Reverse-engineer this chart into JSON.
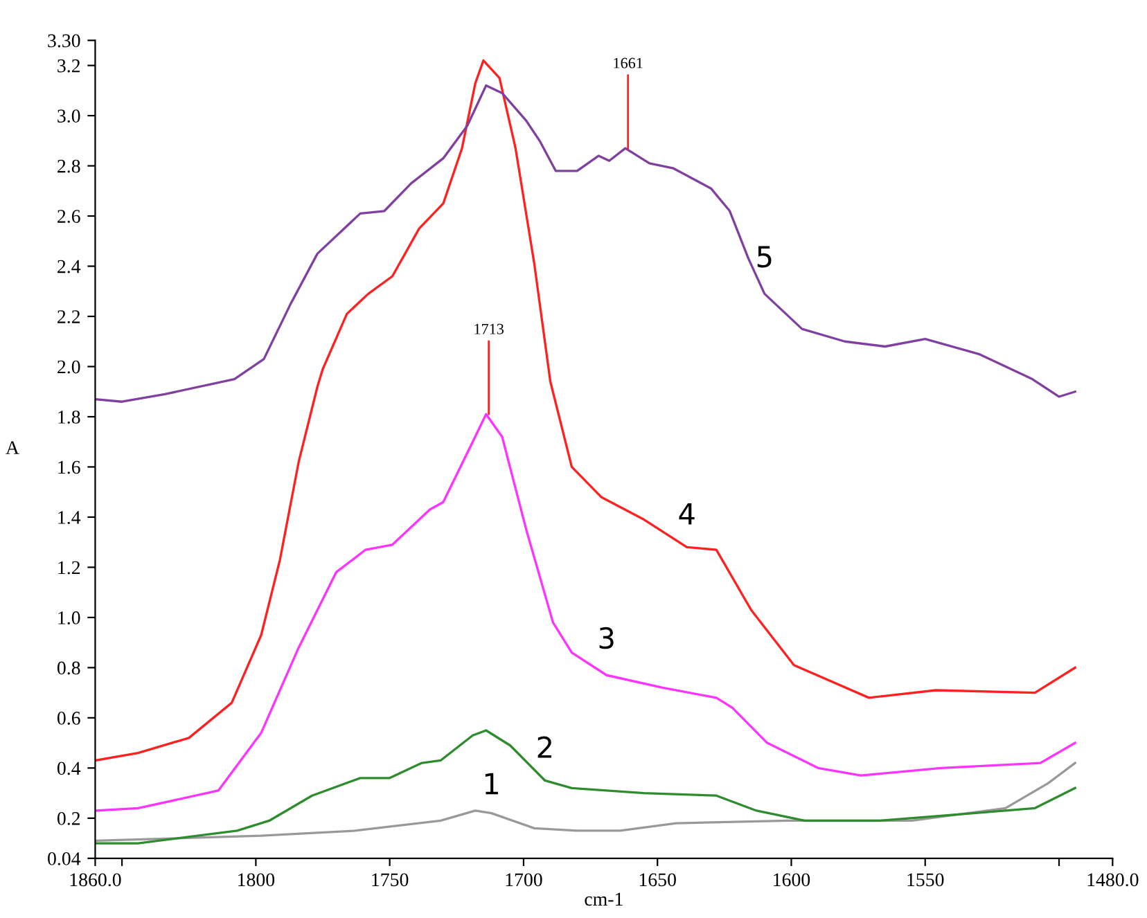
{
  "chart_data": {
    "type": "line",
    "xlabel": "cm-1",
    "ylabel": "A",
    "xlim": [
      1860,
      1480
    ],
    "ylim": [
      0.04,
      3.3
    ],
    "xticks": [
      {
        "value": 1860,
        "label": "1860.0"
      },
      {
        "value": 1850,
        "label": null
      },
      1800,
      1750,
      1700,
      1650,
      1600,
      1550,
      {
        "value": 1500,
        "label": null
      },
      {
        "value": 1480,
        "label": "1480.0"
      }
    ],
    "yticks": [
      0.04,
      0.2,
      0.4,
      0.6,
      0.8,
      {
        "value": 1.0,
        "label": "1.0"
      },
      1.2,
      1.4,
      1.6,
      1.8,
      {
        "value": 2.0,
        "label": "2.0"
      },
      2.2,
      2.4,
      2.6,
      2.8,
      {
        "value": 3.0,
        "label": "3.0"
      },
      3.2,
      {
        "value": 3.3,
        "label": "3.30"
      }
    ],
    "grid": false,
    "legend": false,
    "marker": "none",
    "line_style": "solid",
    "series": [
      {
        "name": "1",
        "color": "#999999",
        "x": [
          1860,
          1798,
          1763,
          1731,
          1718,
          1712,
          1696,
          1680,
          1664,
          1643,
          1601,
          1555,
          1520,
          1504,
          1494
        ],
        "values": [
          0.11,
          0.13,
          0.15,
          0.19,
          0.23,
          0.22,
          0.16,
          0.15,
          0.15,
          0.18,
          0.19,
          0.19,
          0.24,
          0.34,
          0.42
        ]
      },
      {
        "name": "2",
        "color": "#2e8b2e",
        "x": [
          1860,
          1844,
          1807,
          1795,
          1779,
          1761,
          1750,
          1738,
          1731,
          1719,
          1714,
          1705,
          1692,
          1682,
          1655,
          1628,
          1613,
          1595,
          1567,
          1532,
          1509,
          1494
        ],
        "values": [
          0.1,
          0.1,
          0.15,
          0.19,
          0.29,
          0.36,
          0.36,
          0.42,
          0.43,
          0.53,
          0.55,
          0.49,
          0.35,
          0.32,
          0.3,
          0.29,
          0.23,
          0.19,
          0.19,
          0.22,
          0.24,
          0.32
        ]
      },
      {
        "name": "3",
        "color": "#ff33ff",
        "x": [
          1860,
          1844,
          1814,
          1798,
          1784,
          1770,
          1759,
          1749,
          1735,
          1730,
          1719,
          1714,
          1708,
          1699,
          1689,
          1682,
          1669,
          1648,
          1628,
          1622,
          1609,
          1590,
          1574,
          1544,
          1507,
          1494
        ],
        "values": [
          0.23,
          0.24,
          0.31,
          0.54,
          0.88,
          1.18,
          1.27,
          1.29,
          1.43,
          1.46,
          1.7,
          1.81,
          1.72,
          1.35,
          0.98,
          0.86,
          0.77,
          0.72,
          0.68,
          0.64,
          0.5,
          0.4,
          0.37,
          0.4,
          0.42,
          0.5
        ]
      },
      {
        "name": "4",
        "color": "#ff2020",
        "x": [
          1860,
          1844,
          1825,
          1809,
          1798,
          1791,
          1784,
          1777,
          1775,
          1766,
          1758,
          1749,
          1739,
          1730,
          1723,
          1718,
          1715,
          1709,
          1703,
          1696,
          1690,
          1682,
          1671,
          1655,
          1639,
          1628,
          1615,
          1599,
          1571,
          1546,
          1509,
          1494
        ],
        "values": [
          0.43,
          0.46,
          0.52,
          0.66,
          0.93,
          1.23,
          1.62,
          1.92,
          1.99,
          2.21,
          2.29,
          2.36,
          2.55,
          2.65,
          2.87,
          3.13,
          3.22,
          3.15,
          2.87,
          2.41,
          1.94,
          1.6,
          1.48,
          1.39,
          1.28,
          1.27,
          1.03,
          0.81,
          0.68,
          0.71,
          0.7,
          0.8
        ]
      },
      {
        "name": "5",
        "color": "#8040a0",
        "x": [
          1860,
          1850,
          1834,
          1808,
          1797,
          1787,
          1777,
          1761,
          1752,
          1742,
          1730,
          1721,
          1714,
          1708,
          1699,
          1694,
          1688,
          1680,
          1672,
          1668,
          1662,
          1653,
          1644,
          1637,
          1630,
          1623,
          1616,
          1610,
          1596,
          1580,
          1565,
          1550,
          1530,
          1510,
          1500,
          1494
        ],
        "values": [
          1.87,
          1.86,
          1.89,
          1.95,
          2.03,
          2.25,
          2.45,
          2.61,
          2.62,
          2.73,
          2.83,
          2.96,
          3.12,
          3.09,
          2.98,
          2.9,
          2.78,
          2.78,
          2.84,
          2.82,
          2.87,
          2.81,
          2.79,
          2.75,
          2.71,
          2.62,
          2.43,
          2.29,
          2.15,
          2.1,
          2.08,
          2.11,
          2.05,
          1.95,
          1.88,
          1.9
        ]
      }
    ],
    "annotations": [
      {
        "text": "1713",
        "x": 1713,
        "y": 1.81
      },
      {
        "text": "1661",
        "x": 1661,
        "y": 2.87
      }
    ]
  }
}
